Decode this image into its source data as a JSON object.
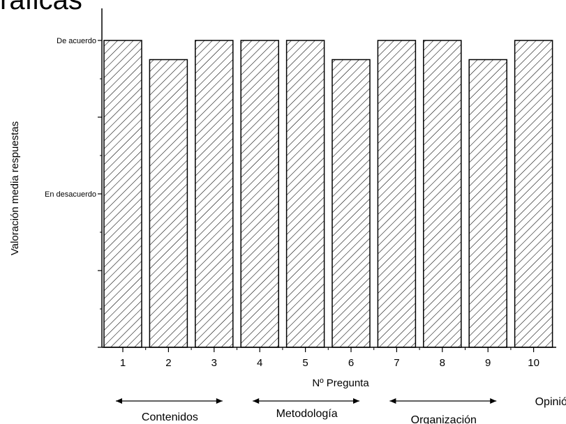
{
  "slide_title": "ráficas",
  "chart_data": {
    "type": "bar",
    "title": "",
    "xlabel": "Nº Pregunta",
    "ylabel": "Valoración media respuestas",
    "categories": [
      "1",
      "2",
      "3",
      "4",
      "5",
      "6",
      "7",
      "8",
      "9",
      "10"
    ],
    "values": [
      4.0,
      3.75,
      4.0,
      4.0,
      4.0,
      3.75,
      4.0,
      4.0,
      3.75,
      4.0
    ],
    "ylim": [
      0,
      4.0
    ],
    "y_ticks": [
      {
        "value": 0,
        "label": ""
      },
      {
        "value": 1,
        "label": ""
      },
      {
        "value": 2,
        "label": "En desacuerdo"
      },
      {
        "value": 3,
        "label": ""
      },
      {
        "value": 4,
        "label": "De acuerdo"
      }
    ],
    "bar_fill": "hatched",
    "colors": {
      "bar_stroke": "#000000",
      "hatch": "#000000",
      "axis": "#000000"
    },
    "grid": false,
    "groups": [
      {
        "label": "Contenidos",
        "from": "1",
        "to": "3",
        "arrow": true
      },
      {
        "label": "Metodología",
        "from": "4",
        "to": "6",
        "arrow": true
      },
      {
        "label": "Organización",
        "from": "7",
        "to": "9",
        "arrow": true
      },
      {
        "label": "Opinión",
        "from": "10",
        "to": "10",
        "arrow": false
      }
    ]
  }
}
